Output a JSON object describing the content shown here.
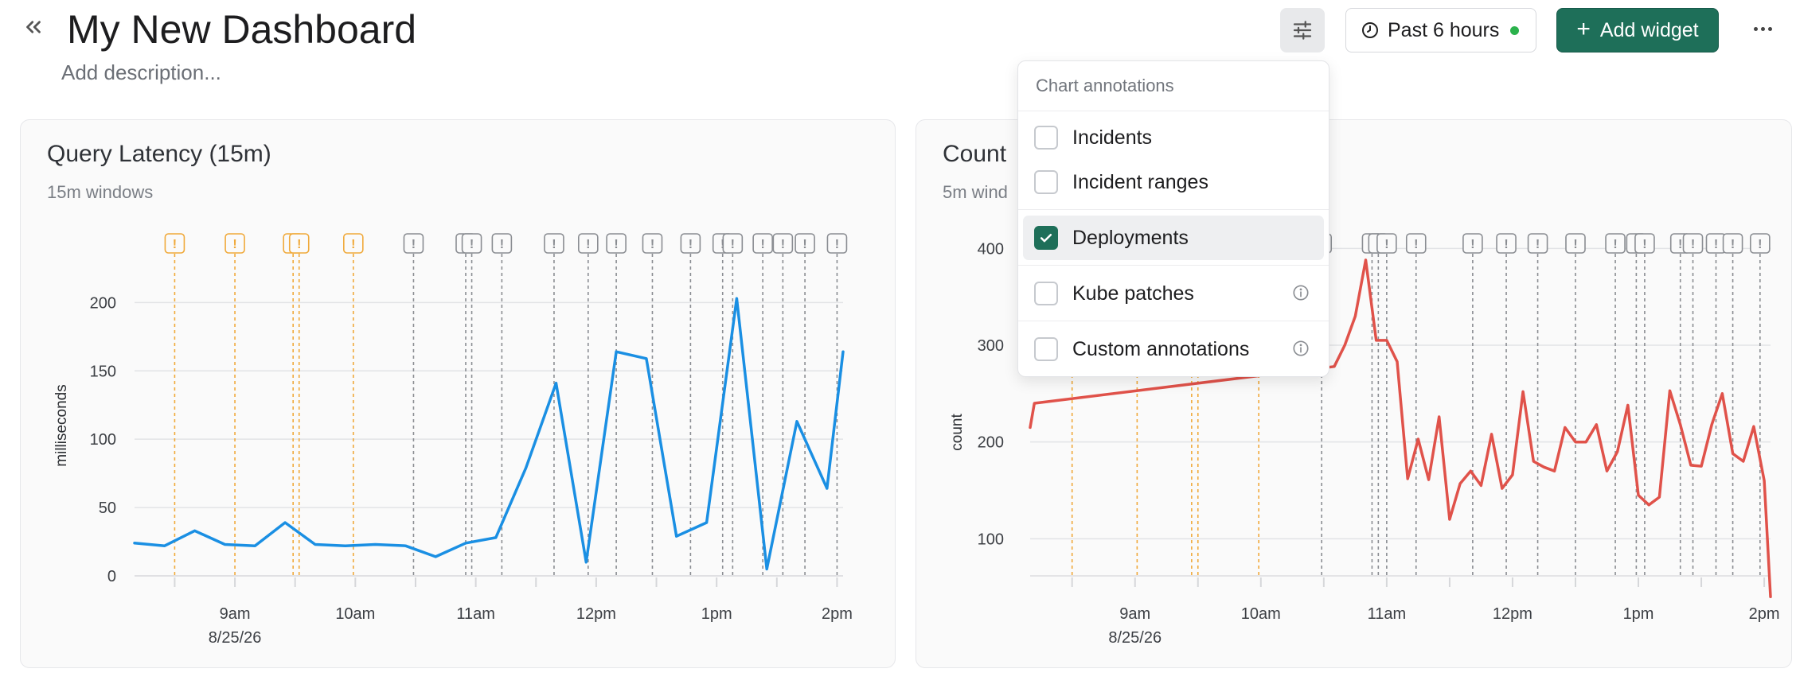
{
  "header": {
    "title": "My New Dashboard",
    "description_placeholder": "Add description...",
    "time_range_label": "Past 6 hours",
    "add_widget_label": "Add widget"
  },
  "icons": {
    "collapse": "chevrons-left-icon",
    "filter": "sliders-icon",
    "clock": "clock-icon",
    "plus": "plus-icon",
    "more": "more-horizontal-icon",
    "annotation": "exclamation-marker-icon",
    "info": "info-icon"
  },
  "colors": {
    "accent": "#1e6f59",
    "live": "#2bb24c",
    "incident_annotation": "#f0a93a",
    "deployment_annotation": "#8a8d92",
    "series_blue": "#1a8fe3",
    "series_red": "#e0524a"
  },
  "annotations_menu": {
    "header": "Chart annotations",
    "items": [
      {
        "label": "Incidents",
        "checked": false,
        "info": false
      },
      {
        "label": "Incident ranges",
        "checked": false,
        "info": false
      },
      {
        "label": "Deployments",
        "checked": true,
        "info": false
      },
      {
        "label": "Kube patches",
        "checked": false,
        "info": true
      },
      {
        "label": "Custom annotations",
        "checked": false,
        "info": true
      }
    ]
  },
  "widgets": [
    {
      "title": "Query Latency (15m)",
      "subtitle": "15m windows"
    },
    {
      "title": "Count",
      "subtitle": "5m wind"
    }
  ],
  "chart_data": [
    {
      "type": "line",
      "title": "Query Latency (15m)",
      "subtitle": "15m windows",
      "ylabel": "milliseconds",
      "xlabel": "",
      "ylim": [
        0,
        220
      ],
      "yticks": [
        0,
        50,
        100,
        150,
        200
      ],
      "x_tick_labels": [
        "9am",
        "10am",
        "11am",
        "12pm",
        "1pm",
        "2pm"
      ],
      "x_date_label": "8/25/26",
      "x_range": [
        "08:10",
        "14:03"
      ],
      "grid": true,
      "series": [
        {
          "color": "#1a8fe3",
          "x": [
            "08:10",
            "08:25",
            "08:40",
            "08:55",
            "09:10",
            "09:25",
            "09:40",
            "09:55",
            "10:10",
            "10:25",
            "10:40",
            "10:55",
            "11:10",
            "11:25",
            "11:40",
            "11:55",
            "12:10",
            "12:25",
            "12:40",
            "12:55",
            "13:10",
            "13:25",
            "13:40",
            "13:55",
            "14:03"
          ],
          "values": [
            24,
            22,
            33,
            23,
            22,
            39,
            23,
            22,
            23,
            22,
            14,
            24,
            28,
            79,
            141,
            10,
            164,
            159,
            29,
            39,
            203,
            5,
            113,
            64,
            164
          ]
        }
      ],
      "incident_annotations": [
        "08:30",
        "09:00",
        "09:29",
        "09:32",
        "09:59"
      ],
      "deployment_annotations": [
        "10:29",
        "10:55",
        "10:58",
        "11:13",
        "11:39",
        "11:56",
        "12:10",
        "12:28",
        "12:47",
        "13:03",
        "13:08",
        "13:23",
        "13:33",
        "13:44",
        "14:00"
      ]
    },
    {
      "type": "line",
      "title": "Count",
      "subtitle": "5m wind",
      "ylabel": "count",
      "xlabel": "",
      "ylim": [
        0,
        420
      ],
      "yticks": [
        100,
        200,
        300,
        400
      ],
      "x_tick_labels": [
        "9am",
        "10am",
        "11am",
        "12pm",
        "1pm",
        "2pm"
      ],
      "x_date_label": "8/25/26",
      "x_range": [
        "08:10",
        "14:03"
      ],
      "grid": true,
      "series": [
        {
          "color": "#e0524a",
          "x": [
            "08:10",
            "08:12",
            "10:35",
            "10:40",
            "10:45",
            "10:50",
            "10:55",
            "11:00",
            "11:05",
            "11:10",
            "11:15",
            "11:20",
            "11:25",
            "11:30",
            "11:35",
            "11:40",
            "11:45",
            "11:50",
            "11:55",
            "12:00",
            "12:05",
            "12:10",
            "12:15",
            "12:20",
            "12:25",
            "12:30",
            "12:35",
            "12:40",
            "12:45",
            "12:50",
            "12:55",
            "13:00",
            "13:05",
            "13:10",
            "13:15",
            "13:20",
            "13:25",
            "13:30",
            "13:35",
            "13:40",
            "13:45",
            "13:50",
            "13:55",
            "14:00",
            "14:03"
          ],
          "values": [
            215,
            240,
            278,
            300,
            330,
            388,
            305,
            305,
            283,
            162,
            203,
            161,
            226,
            120,
            157,
            170,
            155,
            208,
            152,
            166,
            252,
            180,
            174,
            170,
            215,
            200,
            200,
            218,
            170,
            190,
            238,
            145,
            135,
            143,
            253,
            218,
            176,
            175,
            218,
            250,
            188,
            180,
            216,
            160,
            40
          ]
        }
      ],
      "incident_annotations": [
        "08:30",
        "09:01",
        "09:27",
        "09:30",
        "09:59"
      ],
      "deployment_annotations": [
        "10:29",
        "10:53",
        "10:56",
        "11:00",
        "11:14",
        "11:41",
        "11:57",
        "12:12",
        "12:30",
        "12:49",
        "12:59",
        "13:03",
        "13:20",
        "13:26",
        "13:37",
        "13:45",
        "13:58"
      ]
    }
  ]
}
